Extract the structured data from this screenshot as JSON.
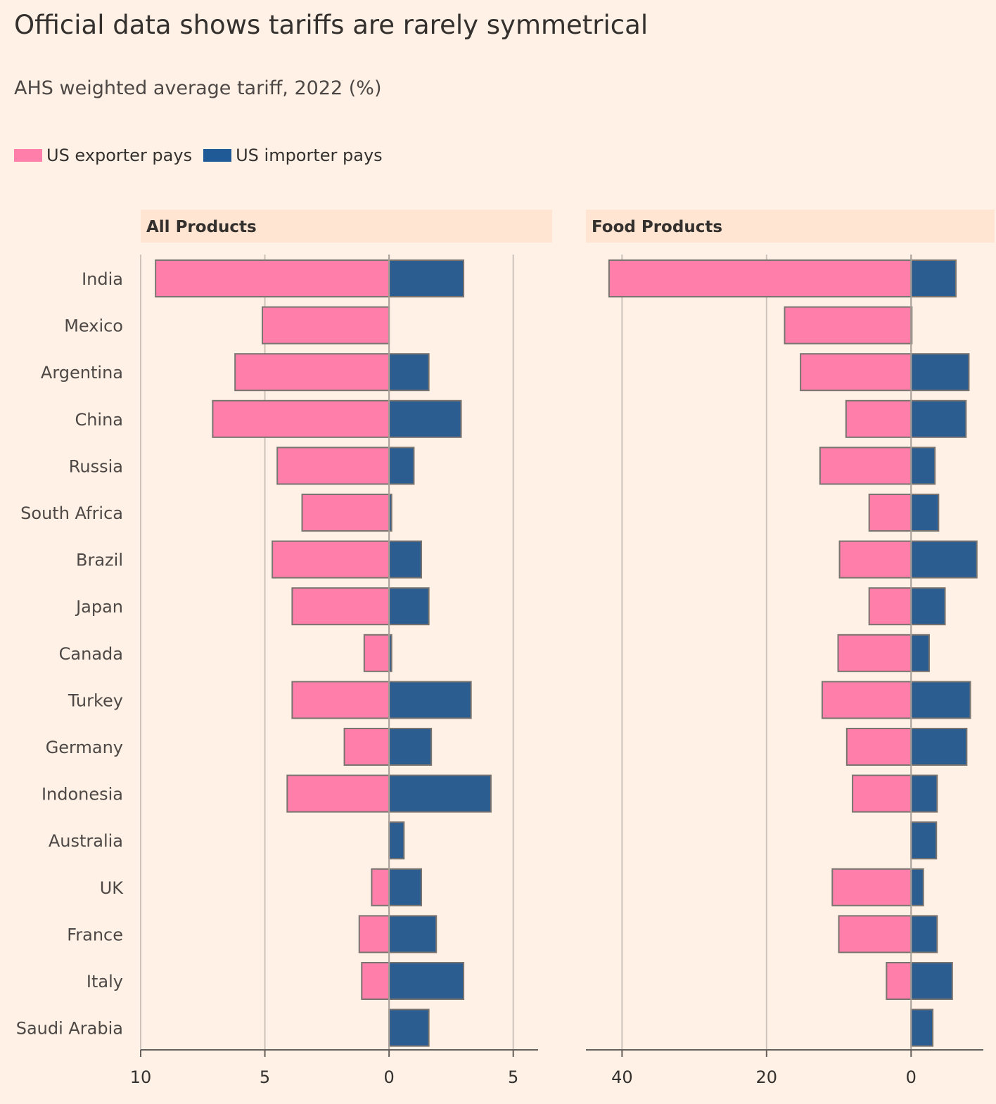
{
  "header": {
    "title": "Official data shows tariffs are rarely symmetrical",
    "subtitle": "AHS weighted average tariff, 2022 (%)"
  },
  "legend": {
    "items": [
      {
        "label": "US exporter pays",
        "color": "#ff7faa"
      },
      {
        "label": "US importer pays",
        "color": "#1f5a96"
      }
    ]
  },
  "chart_data": {
    "type": "bar",
    "orientation": "horizontal-diverging",
    "categories": [
      "India",
      "Mexico",
      "Argentina",
      "China",
      "Russia",
      "South Africa",
      "Brazil",
      "Japan",
      "Canada",
      "Turkey",
      "Germany",
      "Indonesia",
      "Australia",
      "UK",
      "France",
      "Italy",
      "Saudi Arabia"
    ],
    "panels": [
      {
        "title": "All Products",
        "xlim": [
          -10,
          6
        ],
        "ticks": [
          {
            "value": -10,
            "label": "10"
          },
          {
            "value": -5,
            "label": "5"
          },
          {
            "value": 0,
            "label": "0"
          },
          {
            "value": 5,
            "label": "5"
          }
        ],
        "series": [
          {
            "name": "US exporter pays",
            "values": [
              9.4,
              5.1,
              6.2,
              7.1,
              4.5,
              3.5,
              4.7,
              3.9,
              1.0,
              3.9,
              1.8,
              4.1,
              0.0,
              0.7,
              1.2,
              1.1,
              0.0
            ]
          },
          {
            "name": "US importer pays",
            "values": [
              3.0,
              0.0,
              1.6,
              2.9,
              1.0,
              0.1,
              1.3,
              1.6,
              0.1,
              3.3,
              1.7,
              4.1,
              0.6,
              1.3,
              1.9,
              3.0,
              1.6
            ]
          }
        ]
      },
      {
        "title": "Food Products",
        "xlim": [
          -45,
          10
        ],
        "ticks": [
          {
            "value": -40,
            "label": "40"
          },
          {
            "value": -20,
            "label": "20"
          },
          {
            "value": 0,
            "label": "0"
          }
        ],
        "series": [
          {
            "name": "US exporter pays",
            "values": [
              41.8,
              17.5,
              15.3,
              9.0,
              12.6,
              5.8,
              9.9,
              5.8,
              10.1,
              12.3,
              8.9,
              8.1,
              0.0,
              10.9,
              10.0,
              3.4,
              0.0
            ]
          },
          {
            "name": "US importer pays",
            "values": [
              6.2,
              0.1,
              8.0,
              7.6,
              3.3,
              3.8,
              9.1,
              4.7,
              2.5,
              8.2,
              7.7,
              3.6,
              3.5,
              1.7,
              3.6,
              5.7,
              3.0
            ]
          }
        ]
      }
    ],
    "colors": {
      "exporter": "#ff7faa",
      "importer": "#2b5d91",
      "grid": "#cdc3ba",
      "axis": "#66605c",
      "panel_header": "#ffe5d2"
    }
  }
}
